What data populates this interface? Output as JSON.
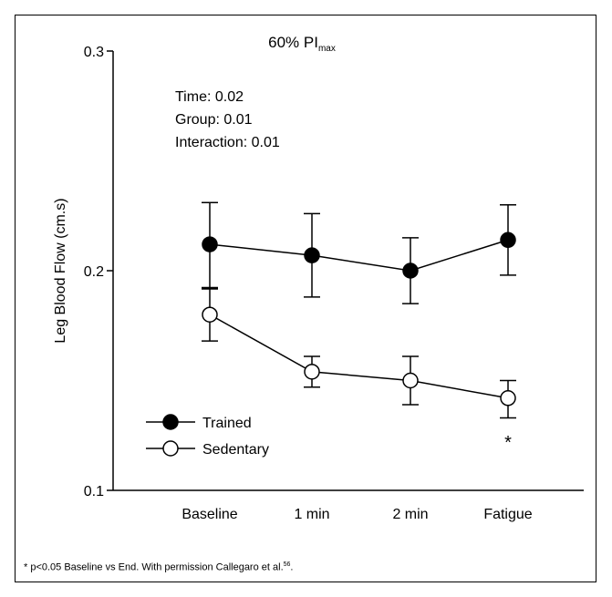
{
  "chart_data": {
    "type": "line",
    "title": "60% PI",
    "title_sub": "max",
    "ylabel": "Leg Blood Flow (cm.s)",
    "xlabel": "",
    "ylim": [
      0.1,
      0.3
    ],
    "yticks": [
      0.1,
      0.2,
      0.3
    ],
    "ytick_labels": [
      "0.1",
      "0.2",
      "0.3"
    ],
    "categories": [
      "Baseline",
      "1 min",
      "2 min",
      "Fatigue"
    ],
    "series": [
      {
        "name": "Trained",
        "marker": "filled-circle",
        "values": [
          0.212,
          0.207,
          0.2,
          0.214
        ],
        "err_low": [
          0.192,
          0.188,
          0.185,
          0.198
        ],
        "err_high": [
          0.231,
          0.226,
          0.215,
          0.23
        ]
      },
      {
        "name": "Sedentary",
        "marker": "open-circle",
        "values": [
          0.18,
          0.154,
          0.15,
          0.142
        ],
        "err_low": [
          0.168,
          0.147,
          0.139,
          0.133
        ],
        "err_high": [
          0.192,
          0.161,
          0.161,
          0.15
        ]
      }
    ],
    "stats": [
      "Time: 0.02",
      "Group: 0.01",
      "Interaction: 0.01"
    ],
    "significance_marker": {
      "category": "Fatigue",
      "label": "*"
    },
    "legend_placement": "bottom-left",
    "grid": false
  },
  "footnote": {
    "text": "* p<0.05 Baseline vs End. With permission Callegaro et al.",
    "ref": "56",
    "period": "."
  }
}
